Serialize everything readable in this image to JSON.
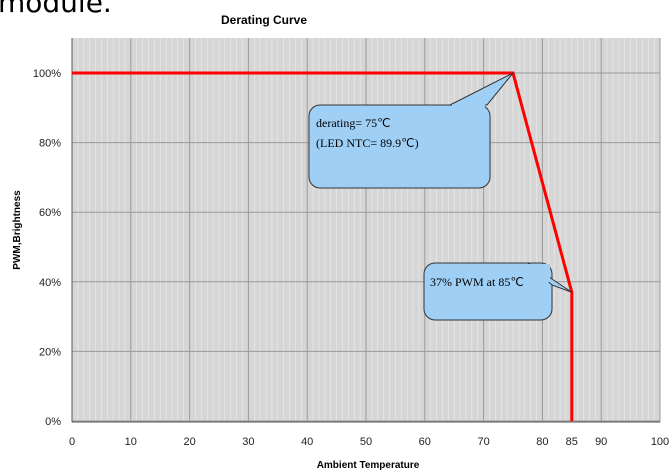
{
  "top_text": "module.",
  "chart_data": {
    "type": "line",
    "title": "Derating Curve",
    "xlabel": "Ambient Temperature",
    "ylabel": "PWM,Brightness",
    "xlim": [
      0,
      100
    ],
    "ylim": [
      0,
      100
    ],
    "x_ticks": [
      0,
      10,
      20,
      30,
      40,
      50,
      60,
      70,
      80,
      85,
      90,
      100
    ],
    "y_ticks": [
      0,
      20,
      40,
      60,
      80,
      100
    ],
    "y_tick_labels": [
      "0%",
      "20%",
      "40%",
      "60%",
      "80%",
      "100%"
    ],
    "grid": true,
    "series": [
      {
        "x": [
          0,
          75,
          85,
          85
        ],
        "y": [
          100,
          100,
          37,
          0
        ],
        "color": "#ff0000"
      }
    ],
    "annotations": [
      {
        "lines": [
          "derating= 75℃",
          "(LED NTC= 89.9℃)"
        ],
        "point": [
          75,
          100
        ],
        "color": "#9fcff5"
      },
      {
        "lines": [
          "37% PWM at 85℃"
        ],
        "point": [
          85,
          37
        ],
        "color": "#9fcff5"
      }
    ]
  }
}
